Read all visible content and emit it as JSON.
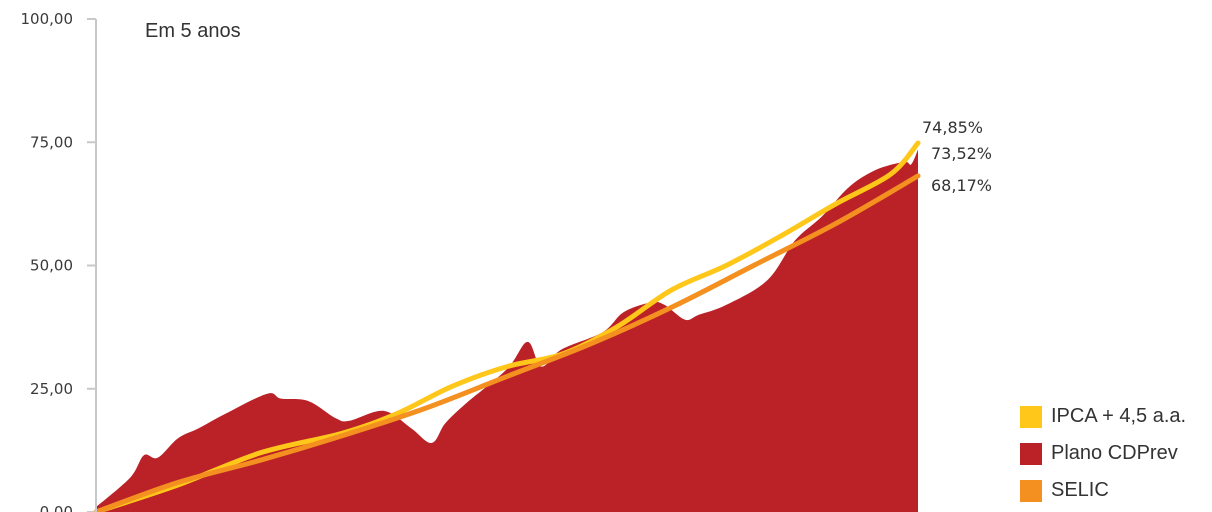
{
  "chart_data": {
    "type": "line",
    "title": "Em 5 anos",
    "ylim": [
      0,
      100
    ],
    "xlim": [
      0,
      60
    ],
    "y_ticks": [
      {
        "value": 0,
        "label": "0,00"
      },
      {
        "value": 25,
        "label": "25,00"
      },
      {
        "value": 50,
        "label": "50,00"
      },
      {
        "value": 75,
        "label": "75,00"
      },
      {
        "value": 100,
        "label": "100,00"
      }
    ],
    "series": [
      {
        "name": "IPCA + 4,5 a.a.",
        "style": "line",
        "color": "#FFC719",
        "end_label": "74,85%",
        "points": [
          [
            0,
            0
          ],
          [
            6,
            5.5
          ],
          [
            12,
            12
          ],
          [
            18,
            16
          ],
          [
            22,
            20
          ],
          [
            26,
            25.5
          ],
          [
            30,
            29.5
          ],
          [
            34,
            32
          ],
          [
            38,
            37.5
          ],
          [
            42,
            45
          ],
          [
            46,
            50
          ],
          [
            50,
            56
          ],
          [
            54,
            62.5
          ],
          [
            58,
            68.5
          ],
          [
            60,
            74.85
          ]
        ]
      },
      {
        "name": "Plano CDPrev",
        "style": "area",
        "color": "#BB2228",
        "end_label": "73,52%",
        "points": [
          [
            0,
            1
          ],
          [
            2.5,
            7
          ],
          [
            3.5,
            11.5
          ],
          [
            4.5,
            11
          ],
          [
            6,
            15
          ],
          [
            7.5,
            17
          ],
          [
            9.5,
            20
          ],
          [
            12.5,
            24
          ],
          [
            13.5,
            23
          ],
          [
            15.5,
            22.5
          ],
          [
            17.5,
            19
          ],
          [
            18.5,
            18.5
          ],
          [
            21,
            20.5
          ],
          [
            23,
            17
          ],
          [
            24.5,
            14
          ],
          [
            25.5,
            18
          ],
          [
            27,
            22
          ],
          [
            30,
            29
          ],
          [
            31.5,
            34.5
          ],
          [
            32.5,
            29.5
          ],
          [
            34,
            33
          ],
          [
            37,
            36.5
          ],
          [
            38.5,
            40.5
          ],
          [
            40.5,
            42.5
          ],
          [
            41.5,
            42
          ],
          [
            43,
            39
          ],
          [
            44,
            40
          ],
          [
            46,
            42
          ],
          [
            49,
            47
          ],
          [
            51,
            55
          ],
          [
            53,
            60
          ],
          [
            55,
            66
          ],
          [
            57,
            69.5
          ],
          [
            59,
            71
          ],
          [
            59.5,
            70.5
          ],
          [
            60,
            73.52
          ]
        ]
      },
      {
        "name": "SELIC",
        "style": "line",
        "color": "#F39020",
        "end_label": "68,17%",
        "points": [
          [
            0,
            0
          ],
          [
            6,
            6
          ],
          [
            12,
            10.5
          ],
          [
            18,
            15.5
          ],
          [
            24,
            21
          ],
          [
            30,
            27.5
          ],
          [
            36,
            34
          ],
          [
            42,
            41.5
          ],
          [
            48,
            50
          ],
          [
            54,
            58.5
          ],
          [
            60,
            68.17
          ]
        ]
      }
    ],
    "legend": {
      "position": "bottom-right",
      "items": [
        {
          "label": "IPCA + 4,5 a.a.",
          "color": "#FFC719"
        },
        {
          "label": "Plano CDPrev",
          "color": "#BB2228"
        },
        {
          "label": "SELIC",
          "color": "#F39020"
        }
      ]
    },
    "grid": false
  }
}
